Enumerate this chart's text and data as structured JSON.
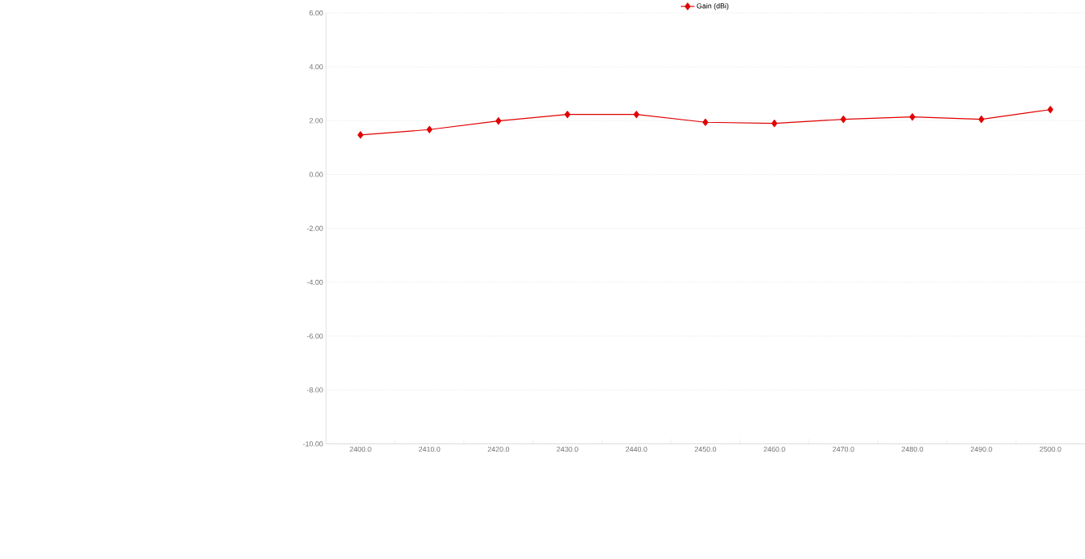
{
  "chart_data": {
    "type": "line",
    "categories": [
      "2400.0",
      "2410.0",
      "2420.0",
      "2430.0",
      "2440.0",
      "2450.0",
      "2460.0",
      "2470.0",
      "2480.0",
      "2490.0",
      "2500.0"
    ],
    "series": [
      {
        "name": "Gain (dBi)",
        "color": "#e00000",
        "values": [
          1.47,
          1.67,
          1.99,
          2.23,
          2.23,
          1.94,
          1.9,
          2.05,
          2.14,
          2.05,
          2.41
        ]
      }
    ],
    "ylim": [
      -10,
      6
    ],
    "yticks": [
      {
        "value": -10,
        "label": "-10.00"
      },
      {
        "value": -8,
        "label": "-8.00"
      },
      {
        "value": -6,
        "label": "-6.00"
      },
      {
        "value": -4,
        "label": "-4.00"
      },
      {
        "value": -2,
        "label": "-2.00"
      },
      {
        "value": 0,
        "label": "0.00"
      },
      {
        "value": 2,
        "label": "2.00"
      },
      {
        "value": 4,
        "label": "4.00"
      },
      {
        "value": 6,
        "label": "6.00"
      }
    ],
    "grid": "y",
    "legend": "top",
    "marker": "diamond",
    "line_style": "solid"
  }
}
